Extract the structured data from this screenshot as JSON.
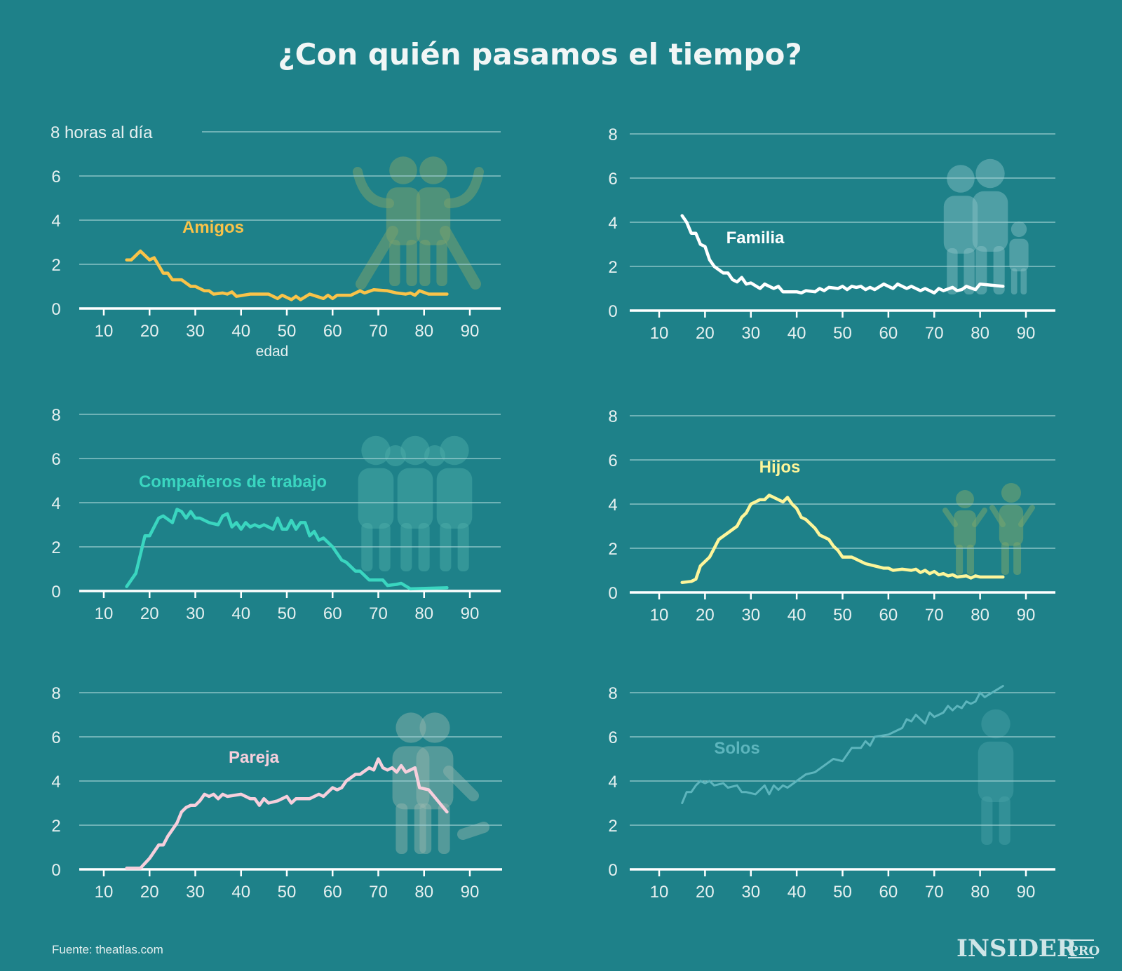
{
  "title": "¿Con quién pasamos el tiempo?",
  "source": "Fuente: theatlas.com",
  "logo": {
    "main": "INSIDER",
    "sub": "PRO"
  },
  "colors": {
    "background": "#1e8189"
  },
  "chart_data": [
    {
      "type": "line",
      "label": "Amigos",
      "color": "#f9c349",
      "icon": "two-friends-icon",
      "ylabel": "8 horas al día",
      "xlabel": "edad",
      "xlim": [
        5,
        97
      ],
      "ylim": [
        0,
        8
      ],
      "grid": true,
      "xticks": [
        "10",
        "20",
        "30",
        "40",
        "50",
        "60",
        "70",
        "80",
        "90"
      ],
      "yticks": [
        "0",
        "2",
        "4",
        "6"
      ],
      "x": [
        15,
        16,
        18,
        20,
        21,
        23,
        24,
        25,
        27,
        29,
        30,
        32,
        33,
        34,
        36,
        37,
        38,
        39,
        42,
        46,
        48,
        49,
        51,
        52,
        53,
        55,
        58,
        59,
        60,
        61,
        64,
        66,
        67,
        69,
        72,
        74,
        76,
        77,
        78,
        79,
        81,
        85
      ],
      "y": [
        2.2,
        2.2,
        2.6,
        2.2,
        2.3,
        1.6,
        1.6,
        1.3,
        1.3,
        1.0,
        1.0,
        0.8,
        0.8,
        0.65,
        0.7,
        0.65,
        0.75,
        0.55,
        0.65,
        0.65,
        0.45,
        0.6,
        0.4,
        0.55,
        0.4,
        0.65,
        0.45,
        0.6,
        0.45,
        0.6,
        0.6,
        0.8,
        0.7,
        0.85,
        0.8,
        0.7,
        0.65,
        0.7,
        0.6,
        0.8,
        0.65,
        0.65
      ]
    },
    {
      "type": "line",
      "label": "Familia",
      "color": "#ffffff",
      "icon": "family-icon",
      "xlim": [
        5,
        97
      ],
      "ylim": [
        0,
        8
      ],
      "grid": true,
      "xticks": [
        "10",
        "20",
        "30",
        "40",
        "50",
        "60",
        "70",
        "80",
        "90"
      ],
      "yticks": [
        "0",
        "2",
        "4",
        "6",
        "8"
      ],
      "x": [
        15,
        16,
        17,
        18,
        19,
        20,
        21,
        22,
        24,
        25,
        26,
        27,
        28,
        29,
        30,
        32,
        33,
        35,
        36,
        37,
        40,
        41,
        42,
        44,
        45,
        46,
        47,
        49,
        50,
        51,
        52,
        53,
        54,
        55,
        56,
        57,
        59,
        61,
        62,
        64,
        65,
        66,
        67,
        68,
        69,
        70,
        71,
        72,
        74,
        75,
        76,
        77,
        79,
        80,
        85
      ],
      "y": [
        4.3,
        4.0,
        3.5,
        3.5,
        3.0,
        2.9,
        2.3,
        2.0,
        1.7,
        1.7,
        1.4,
        1.3,
        1.5,
        1.2,
        1.25,
        1.0,
        1.2,
        1.0,
        1.1,
        0.85,
        0.85,
        0.8,
        0.9,
        0.85,
        1.0,
        0.9,
        1.05,
        1.0,
        1.1,
        0.95,
        1.1,
        1.05,
        1.1,
        0.95,
        1.05,
        0.95,
        1.2,
        1.0,
        1.2,
        1.0,
        1.1,
        1.0,
        0.9,
        1.0,
        0.9,
        0.8,
        1.0,
        0.9,
        1.05,
        0.9,
        0.95,
        1.1,
        0.95,
        1.2,
        1.1
      ]
    },
    {
      "type": "line",
      "label": "Compañeros de trabajo",
      "color": "#3ad6c0",
      "icon": "coworkers-icon",
      "xlim": [
        5,
        97
      ],
      "ylim": [
        0,
        8
      ],
      "grid": true,
      "xticks": [
        "10",
        "20",
        "30",
        "40",
        "50",
        "60",
        "70",
        "80",
        "90"
      ],
      "yticks": [
        "0",
        "2",
        "4",
        "6",
        "8"
      ],
      "x": [
        15,
        17,
        19,
        20,
        22,
        23,
        25,
        26,
        27,
        28,
        29,
        30,
        31,
        33,
        35,
        36,
        37,
        38,
        39,
        40,
        41,
        42,
        43,
        44,
        45,
        47,
        48,
        49,
        50,
        51,
        52,
        53,
        54,
        55,
        56,
        57,
        58,
        60,
        62,
        63,
        65,
        66,
        68,
        71,
        72,
        74,
        75,
        77,
        85
      ],
      "y": [
        0.2,
        0.8,
        2.5,
        2.5,
        3.3,
        3.4,
        3.1,
        3.7,
        3.6,
        3.3,
        3.6,
        3.3,
        3.3,
        3.1,
        3.0,
        3.4,
        3.5,
        2.9,
        3.1,
        2.8,
        3.1,
        2.9,
        3.0,
        2.9,
        3.0,
        2.8,
        3.3,
        2.8,
        2.8,
        3.2,
        2.8,
        3.1,
        3.1,
        2.5,
        2.7,
        2.3,
        2.4,
        2.0,
        1.4,
        1.3,
        0.9,
        0.9,
        0.5,
        0.5,
        0.25,
        0.3,
        0.35,
        0.1,
        0.15
      ]
    },
    {
      "type": "line",
      "label": "Hijos",
      "color": "#fdf59a",
      "icon": "children-icon",
      "xlim": [
        5,
        97
      ],
      "ylim": [
        0,
        8
      ],
      "grid": true,
      "xticks": [
        "10",
        "20",
        "30",
        "40",
        "50",
        "60",
        "70",
        "80",
        "90"
      ],
      "yticks": [
        "0",
        "2",
        "4",
        "6",
        "8"
      ],
      "x": [
        15,
        17,
        18,
        19,
        20,
        21,
        22,
        23,
        25,
        27,
        28,
        29,
        30,
        31,
        32,
        33,
        34,
        35,
        37,
        38,
        39,
        40,
        41,
        42,
        44,
        45,
        47,
        48,
        49,
        50,
        52,
        55,
        57,
        59,
        60,
        61,
        63,
        65,
        66,
        67,
        68,
        69,
        70,
        71,
        72,
        73,
        74,
        75,
        77,
        78,
        79,
        80,
        85
      ],
      "y": [
        0.45,
        0.5,
        0.6,
        1.2,
        1.4,
        1.6,
        2.0,
        2.4,
        2.7,
        3.0,
        3.4,
        3.6,
        4.0,
        4.1,
        4.2,
        4.2,
        4.4,
        4.3,
        4.1,
        4.3,
        4.0,
        3.8,
        3.4,
        3.3,
        2.9,
        2.6,
        2.4,
        2.1,
        1.9,
        1.6,
        1.6,
        1.3,
        1.2,
        1.1,
        1.1,
        1.0,
        1.05,
        1.0,
        1.05,
        0.9,
        1.0,
        0.85,
        0.95,
        0.8,
        0.85,
        0.75,
        0.8,
        0.7,
        0.75,
        0.65,
        0.75,
        0.7,
        0.7
      ]
    },
    {
      "type": "line",
      "label": "Pareja",
      "color": "#f6cfdc",
      "icon": "couple-icon",
      "xlim": [
        5,
        97
      ],
      "ylim": [
        0,
        8
      ],
      "grid": true,
      "xticks": [
        "10",
        "20",
        "30",
        "40",
        "50",
        "60",
        "70",
        "80",
        "90"
      ],
      "yticks": [
        "0",
        "2",
        "4",
        "6",
        "8"
      ],
      "x": [
        15,
        18,
        20,
        21,
        22,
        23,
        24,
        25,
        26,
        27,
        28,
        29,
        30,
        31,
        32,
        33,
        34,
        35,
        36,
        37,
        40,
        41,
        42,
        43,
        44,
        45,
        46,
        48,
        50,
        51,
        52,
        55,
        57,
        58,
        60,
        61,
        62,
        63,
        65,
        66,
        68,
        69,
        70,
        71,
        72,
        73,
        74,
        75,
        76,
        77,
        78,
        79,
        81,
        85
      ],
      "y": [
        0.05,
        0.05,
        0.5,
        0.8,
        1.1,
        1.1,
        1.5,
        1.8,
        2.1,
        2.6,
        2.8,
        2.9,
        2.9,
        3.1,
        3.4,
        3.3,
        3.4,
        3.2,
        3.4,
        3.3,
        3.4,
        3.3,
        3.2,
        3.2,
        2.9,
        3.2,
        3.0,
        3.1,
        3.3,
        3.0,
        3.2,
        3.2,
        3.4,
        3.3,
        3.7,
        3.6,
        3.7,
        4.0,
        4.3,
        4.3,
        4.6,
        4.5,
        5.0,
        4.6,
        4.5,
        4.6,
        4.4,
        4.7,
        4.4,
        4.5,
        4.6,
        3.7,
        3.6,
        2.6
      ]
    },
    {
      "type": "line",
      "label": "Solos",
      "color": "#5db5bd",
      "icon": "person-alone-icon",
      "xlim": [
        5,
        97
      ],
      "ylim": [
        0,
        8
      ],
      "grid": true,
      "xticks": [
        "10",
        "20",
        "30",
        "40",
        "50",
        "60",
        "70",
        "80",
        "90"
      ],
      "yticks": [
        "0",
        "2",
        "4",
        "6",
        "8"
      ],
      "x": [
        15,
        16,
        17,
        18,
        19,
        20,
        21,
        22,
        24,
        25,
        27,
        28,
        29,
        31,
        33,
        34,
        35,
        36,
        37,
        38,
        40,
        42,
        44,
        46,
        48,
        50,
        52,
        54,
        55,
        56,
        57,
        60,
        62,
        63,
        64,
        65,
        66,
        67,
        68,
        69,
        70,
        72,
        73,
        74,
        75,
        76,
        77,
        78,
        79,
        80,
        81,
        85
      ],
      "y": [
        3.0,
        3.5,
        3.5,
        3.8,
        4.0,
        3.9,
        4.0,
        3.8,
        3.9,
        3.7,
        3.8,
        3.5,
        3.5,
        3.4,
        3.8,
        3.4,
        3.8,
        3.6,
        3.8,
        3.7,
        4.0,
        4.3,
        4.4,
        4.7,
        5.0,
        4.9,
        5.5,
        5.5,
        5.8,
        5.6,
        6.0,
        6.1,
        6.3,
        6.4,
        6.8,
        6.7,
        7.0,
        6.8,
        6.6,
        7.1,
        6.9,
        7.1,
        7.4,
        7.2,
        7.4,
        7.3,
        7.6,
        7.5,
        7.6,
        8.0,
        7.8,
        8.3
      ]
    }
  ]
}
